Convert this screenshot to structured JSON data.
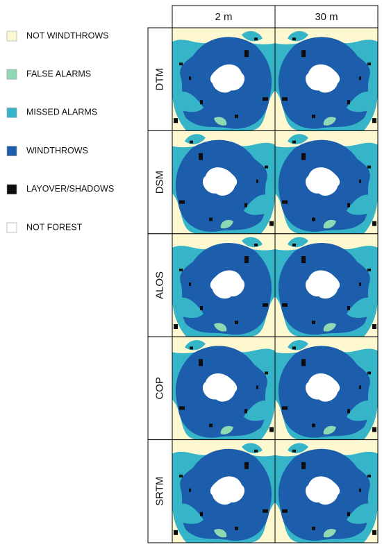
{
  "legend": {
    "items": [
      {
        "label": "NOT WINDTHROWS",
        "color": "#fdf8cf"
      },
      {
        "label": "FALSE ALARMS",
        "color": "#8fd8b4"
      },
      {
        "label": "MISSED ALARMS",
        "color": "#36b5c9"
      },
      {
        "label": "WINDTHROWS",
        "color": "#1d5eac"
      },
      {
        "label": "LAYOVER/SHADOWS",
        "color": "#0d0d0d"
      },
      {
        "label": "NOT FOREST",
        "color": "#ffffff"
      }
    ]
  },
  "grid": {
    "columns": [
      "2 m",
      "30 m"
    ],
    "rows": [
      "DTM",
      "DSM",
      "ALOS",
      "COP",
      "SRTM"
    ]
  }
}
